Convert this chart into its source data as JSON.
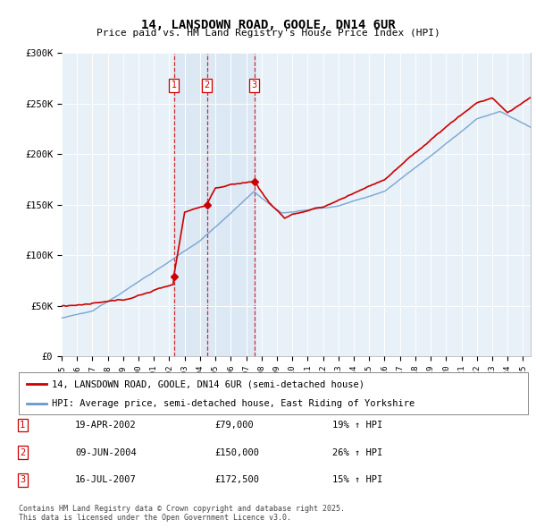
{
  "title": "14, LANSDOWN ROAD, GOOLE, DN14 6UR",
  "subtitle": "Price paid vs. HM Land Registry's House Price Index (HPI)",
  "ylim": [
    0,
    300000
  ],
  "xlim_start": 1995.0,
  "xlim_end": 2025.5,
  "legend_line1": "14, LANSDOWN ROAD, GOOLE, DN14 6UR (semi-detached house)",
  "legend_line2": "HPI: Average price, semi-detached house, East Riding of Yorkshire",
  "transactions": [
    {
      "num": 1,
      "date": "19-APR-2002",
      "price": 79000,
      "hpi_pct": "19% ↑ HPI",
      "year": 2002.3
    },
    {
      "num": 2,
      "date": "09-JUN-2004",
      "price": 150000,
      "hpi_pct": "26% ↑ HPI",
      "year": 2004.45
    },
    {
      "num": 3,
      "date": "16-JUL-2007",
      "price": 172500,
      "hpi_pct": "15% ↑ HPI",
      "year": 2007.54
    }
  ],
  "footnote": "Contains HM Land Registry data © Crown copyright and database right 2025.\nThis data is licensed under the Open Government Licence v3.0.",
  "red_color": "#cc0000",
  "blue_color": "#6699cc",
  "chart_bg": "#e8f0f8",
  "grid_color": "#ffffff",
  "background_color": "#ffffff"
}
